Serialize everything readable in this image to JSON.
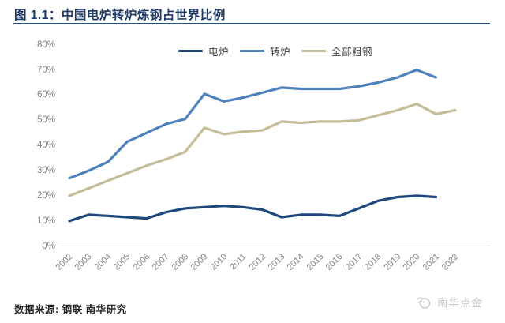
{
  "figure": {
    "title": "图 1.1：中国电炉转炉炼钢占世界比例",
    "source_note": "数据来源: 钢联 南华研究",
    "watermark": "南华点金"
  },
  "chart_data": {
    "type": "line",
    "title": "中国电炉转炉炼钢占世界比例",
    "categories": [
      "2002",
      "2003",
      "2004",
      "2005",
      "2006",
      "2007",
      "2008",
      "2009",
      "2010",
      "2011",
      "2012",
      "2013",
      "2014",
      "2015",
      "2016",
      "2017",
      "2018",
      "2019",
      "2020",
      "2021",
      "2022"
    ],
    "series": [
      {
        "key": "eaf",
        "name": "电炉",
        "color": "#1F497D",
        "values": [
          10,
          12.5,
          12,
          11.5,
          11,
          13.5,
          15,
          15.5,
          16,
          15.5,
          14.5,
          11.5,
          12.5,
          12.5,
          12,
          15,
          18,
          19.5,
          20,
          19.5,
          null
        ]
      },
      {
        "key": "bof",
        "name": "转炉",
        "color": "#4F81BD",
        "values": [
          27,
          30,
          33.5,
          41.5,
          45,
          48.5,
          50.5,
          60.5,
          57.5,
          59,
          61,
          63,
          62.5,
          62.5,
          62.5,
          63.5,
          65,
          67,
          70,
          67,
          null
        ]
      },
      {
        "key": "crude_steel",
        "name": "全部粗钢",
        "color": "#C4BD97",
        "values": [
          20,
          23,
          26,
          29,
          32,
          34.5,
          37.5,
          47,
          44.5,
          45.5,
          46,
          49.5,
          49,
          49.5,
          49.5,
          50,
          52,
          54,
          56.5,
          52.5,
          54
        ]
      }
    ],
    "yticks": [
      "0%",
      "10%",
      "20%",
      "30%",
      "40%",
      "50%",
      "60%",
      "70%",
      "80%"
    ],
    "ylim": [
      0,
      80
    ],
    "grid": false,
    "legend_position": "top-center",
    "axis_label_color": "#7f7f7f",
    "axis_line_color": "#d9d9d9"
  }
}
